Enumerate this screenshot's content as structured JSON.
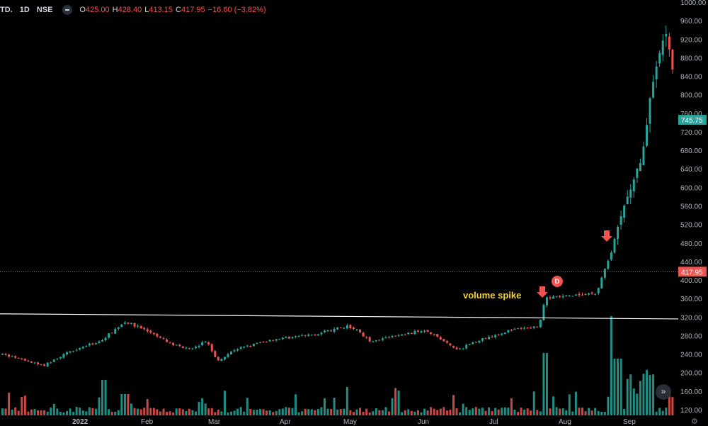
{
  "legend": {
    "symbol": "TD.",
    "timeframe": "1D",
    "exchange": "NSE",
    "open_label": "O",
    "open": "425.00",
    "high_label": "H",
    "high": "428.40",
    "low_label": "L",
    "low": "413.15",
    "close_label": "C",
    "close": "417.95",
    "change": "−16.60 (−3.82%)"
  },
  "annotations": {
    "volume_spike": "volume spike",
    "dividend_badge": "D"
  },
  "colors": {
    "up": "#26a69a",
    "down": "#ef5350",
    "background": "#000000",
    "annotation": "#f2d43d",
    "resistance_line": "#ffffff",
    "last_price_line": "#ef5350"
  },
  "chart_data": {
    "type": "candlestick",
    "ylim": [
      120,
      1000
    ],
    "y_ticks": [
      "1000.00",
      "960.00",
      "920.00",
      "880.00",
      "840.00",
      "800.00",
      "760.00",
      "720.00",
      "680.00",
      "640.00",
      "600.00",
      "560.00",
      "520.00",
      "480.00",
      "440.00",
      "400.00",
      "360.00",
      "320.00",
      "280.00",
      "240.00",
      "200.00",
      "160.00",
      "120.00"
    ],
    "x_ticks": [
      "2022",
      "Feb",
      "Mar",
      "Apr",
      "May",
      "Jun",
      "Jul",
      "Aug",
      "Sep"
    ],
    "price_labels": [
      {
        "text": "745.75",
        "value": 745.75,
        "color": "#26a69a"
      },
      {
        "text": "417.95",
        "value": 417.95,
        "color": "#ef5350"
      }
    ],
    "resistance_line": {
      "start": 327,
      "end": 316
    },
    "last_price_line": 417.95,
    "points": [
      {
        "x": "Dec",
        "price": 240
      },
      {
        "x": "Jan-10",
        "price": 215
      },
      {
        "x": "Jan",
        "price": 248
      },
      {
        "x": "Jan-20",
        "price": 268
      },
      {
        "x": "Jan-27",
        "price": 310
      },
      {
        "x": "Feb",
        "price": 295
      },
      {
        "x": "Feb-15",
        "price": 262
      },
      {
        "x": "Feb-25",
        "price": 250
      },
      {
        "x": "Mar",
        "price": 270
      },
      {
        "x": "Mar-10",
        "price": 225
      },
      {
        "x": "Mar-20",
        "price": 250
      },
      {
        "x": "Apr",
        "price": 272
      },
      {
        "x": "Apr-15",
        "price": 282
      },
      {
        "x": "May",
        "price": 300
      },
      {
        "x": "May-10",
        "price": 290
      },
      {
        "x": "May-20",
        "price": 268
      },
      {
        "x": "Jun",
        "price": 283
      },
      {
        "x": "Jun-15",
        "price": 293
      },
      {
        "x": "Jun-25",
        "price": 248
      },
      {
        "x": "Jul",
        "price": 268
      },
      {
        "x": "Jul-15",
        "price": 292
      },
      {
        "x": "Jul-25",
        "price": 300
      },
      {
        "x": "Aug",
        "price": 360
      },
      {
        "x": "Aug-10",
        "price": 365
      },
      {
        "x": "Aug-20",
        "price": 370
      },
      {
        "x": "Aug-25",
        "price": 460
      },
      {
        "x": "Sep",
        "price": 560
      },
      {
        "x": "Sep-10",
        "price": 660
      },
      {
        "x": "Sep-15",
        "price": 820
      },
      {
        "x": "Sep-20",
        "price": 945
      },
      {
        "x": "Sep-25",
        "price": 835
      }
    ],
    "volume_series": [
      {
        "x": "Jan-27",
        "volume": "high"
      },
      {
        "x": "May",
        "volume": "high"
      },
      {
        "x": "Jul-25",
        "volume": "spike"
      },
      {
        "x": "Aug-25",
        "volume": "spike"
      },
      {
        "x": "Sep",
        "volume": "high"
      }
    ]
  }
}
